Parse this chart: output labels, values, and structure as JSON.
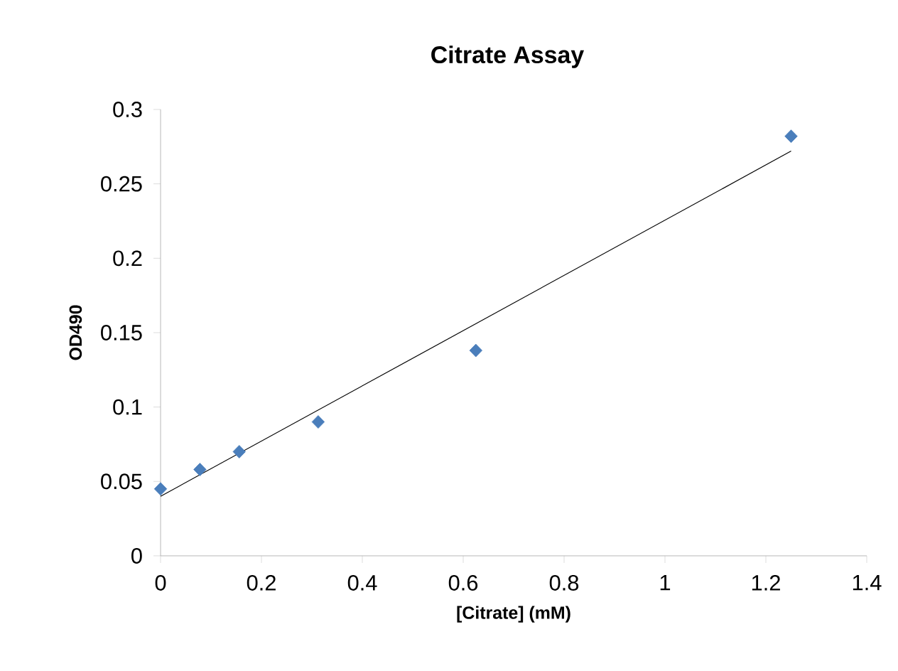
{
  "chart_data": {
    "type": "scatter",
    "title": "Citrate Assay",
    "xlabel": "[Citrate] (mM)",
    "ylabel": "OD490",
    "xlim": [
      0,
      1.4
    ],
    "xticks": [
      0,
      0.2,
      0.4,
      0.6,
      0.8,
      1,
      1.2,
      1.4
    ],
    "ylim": [
      0,
      0.3
    ],
    "yticks": [
      0,
      0.05,
      0.1,
      0.15,
      0.2,
      0.25,
      0.3
    ],
    "grid": false,
    "marker": "diamond",
    "series": [
      {
        "color": "#4a7ebb",
        "x": [
          0,
          0.078,
          0.156,
          0.3125,
          0.625,
          1.25
        ],
        "values": [
          0.045,
          0.058,
          0.07,
          0.09,
          0.138,
          0.282
        ]
      },
      {
        "type": "line",
        "color": "#000000",
        "marker": "none",
        "line_style": "solid",
        "x": [
          0,
          1.25
        ],
        "values": [
          0.04,
          0.272
        ]
      }
    ]
  }
}
